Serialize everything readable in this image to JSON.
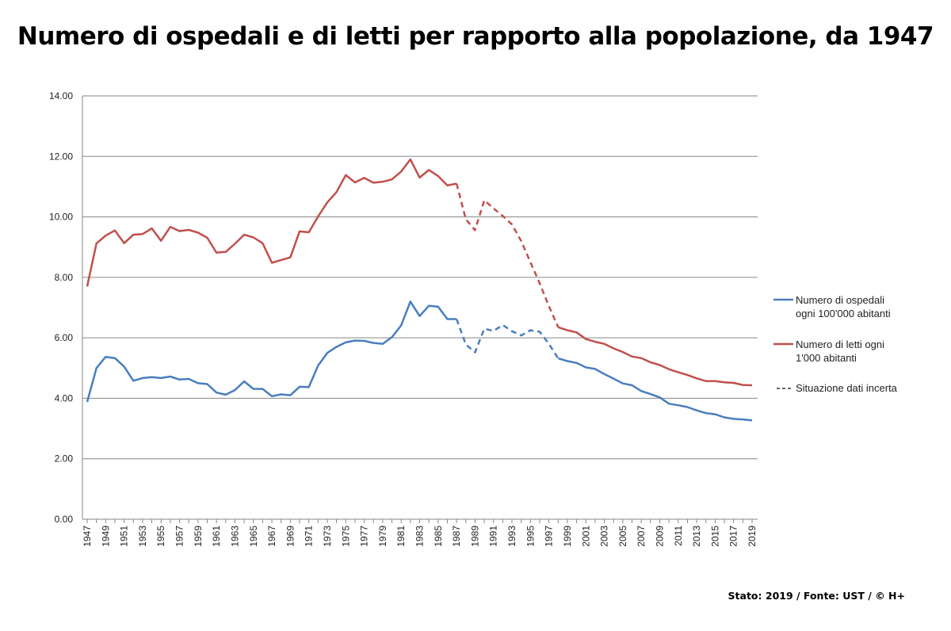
{
  "title": "Numero di ospedali e di letti per rapporto alla popolazione, da 1947",
  "footer": "Stato: 2019 / Fonte: UST / © H+",
  "colors": {
    "hospitals": "#4a7dbf",
    "beds": "#c0504d",
    "grid": "#868686",
    "axis": "#868686"
  },
  "chart_data": {
    "type": "line",
    "title": "Numero di ospedali e di letti per rapporto alla popolazione, da 1947",
    "xlabel": "",
    "ylabel": "",
    "ylim": [
      0,
      14
    ],
    "yticks": [
      "0.00",
      "2.00",
      "4.00",
      "6.00",
      "8.00",
      "10.00",
      "12.00",
      "14.00"
    ],
    "grid": true,
    "legend_position": "right",
    "x": [
      1947,
      1948,
      1949,
      1950,
      1951,
      1952,
      1953,
      1954,
      1955,
      1956,
      1957,
      1958,
      1959,
      1960,
      1961,
      1962,
      1963,
      1964,
      1965,
      1966,
      1967,
      1968,
      1969,
      1970,
      1971,
      1972,
      1973,
      1974,
      1975,
      1976,
      1977,
      1978,
      1979,
      1980,
      1981,
      1982,
      1983,
      1984,
      1985,
      1986,
      1987,
      1988,
      1989,
      1990,
      1991,
      1992,
      1993,
      1994,
      1995,
      1996,
      1997,
      1998,
      1999,
      2000,
      2001,
      2002,
      2003,
      2004,
      2005,
      2006,
      2007,
      2008,
      2009,
      2010,
      2011,
      2012,
      2013,
      2014,
      2015,
      2016,
      2017,
      2018,
      2019
    ],
    "xtick_labels": [
      "1947",
      "1949",
      "1951",
      "1953",
      "1955",
      "1957",
      "1959",
      "1961",
      "1963",
      "1965",
      "1967",
      "1969",
      "1971",
      "1973",
      "1975",
      "1977",
      "1979",
      "1981",
      "1983",
      "1985",
      "1987",
      "1989",
      "1991",
      "1993",
      "1995",
      "1997",
      "1999",
      "2001",
      "2003",
      "2005",
      "2007",
      "2009",
      "2011",
      "2013",
      "2015",
      "2017",
      "2019"
    ],
    "uncertain_range": [
      1987,
      1998
    ],
    "series": [
      {
        "name": "Numero di ospedali ogni 100'000 abitanti",
        "color": "#4a7dbf",
        "values": [
          3.88,
          5.0,
          5.37,
          5.33,
          5.05,
          4.58,
          4.67,
          4.7,
          4.67,
          4.72,
          4.62,
          4.64,
          4.5,
          4.47,
          4.19,
          4.12,
          4.27,
          4.56,
          4.31,
          4.31,
          4.07,
          4.13,
          4.1,
          4.38,
          4.37,
          5.08,
          5.5,
          5.7,
          5.85,
          5.91,
          5.9,
          5.83,
          5.8,
          6.02,
          6.41,
          7.2,
          6.72,
          7.06,
          7.03,
          6.62,
          6.62,
          5.78,
          5.52,
          6.3,
          6.23,
          6.42,
          6.22,
          6.08,
          6.25,
          6.2,
          5.8,
          5.32,
          5.23,
          5.17,
          5.02,
          4.97,
          4.8,
          4.65,
          4.49,
          4.43,
          4.24,
          4.14,
          4.03,
          3.82,
          3.77,
          3.71,
          3.6,
          3.51,
          3.47,
          3.37,
          3.32,
          3.3,
          3.27
        ]
      },
      {
        "name": "Numero di letti ogni 1'000 abitanti",
        "color": "#c0504d",
        "values": [
          7.7,
          9.12,
          9.38,
          9.55,
          9.13,
          9.41,
          9.43,
          9.62,
          9.21,
          9.67,
          9.53,
          9.57,
          9.48,
          9.31,
          8.82,
          8.84,
          9.11,
          9.41,
          9.32,
          9.13,
          8.48,
          8.57,
          8.66,
          9.52,
          9.49,
          10.01,
          10.48,
          10.82,
          11.38,
          11.14,
          11.29,
          11.13,
          11.16,
          11.24,
          11.5,
          11.9,
          11.3,
          11.55,
          11.35,
          11.04,
          11.1,
          9.92,
          9.56,
          10.55,
          10.28,
          10.03,
          9.75,
          9.2,
          8.5,
          7.8,
          7.05,
          6.35,
          6.25,
          6.18,
          5.96,
          5.87,
          5.8,
          5.65,
          5.53,
          5.38,
          5.33,
          5.19,
          5.1,
          4.96,
          4.86,
          4.77,
          4.66,
          4.57,
          4.57,
          4.53,
          4.51,
          4.44,
          4.43
        ]
      }
    ],
    "legend": {
      "series1": [
        "Numero di ospedali",
        "ogni 100'000 abitanti"
      ],
      "series2": [
        "Numero di letti ogni",
        "1'000 abitanti"
      ],
      "uncertain": "Situazione dati incerta"
    }
  }
}
